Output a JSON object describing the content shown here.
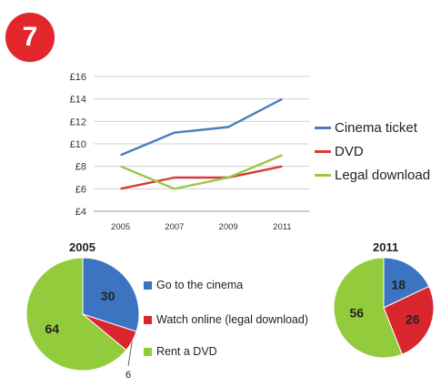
{
  "badge": {
    "label": "7",
    "color": "#e3262c"
  },
  "chart_data": [
    {
      "type": "line",
      "x": [
        "2005",
        "2007",
        "2009",
        "2011"
      ],
      "y_ticks": [
        "£4",
        "£6",
        "£8",
        "£10",
        "£12",
        "£14",
        "£16"
      ],
      "ylim": [
        4,
        16
      ],
      "grid": true,
      "legend_position": "right",
      "series": [
        {
          "name": "Cinema ticket",
          "values": [
            9,
            11,
            11.5,
            14
          ],
          "color": "#4a7ebb"
        },
        {
          "name": "DVD",
          "values": [
            6,
            7,
            7,
            8
          ],
          "color": "#d63a3a"
        },
        {
          "name": "Legal download",
          "values": [
            8,
            6,
            7,
            9
          ],
          "color": "#9bc846"
        }
      ]
    },
    {
      "type": "pie",
      "title": "2005",
      "categories": [
        "Go to the cinema",
        "Watch online (legal download)",
        "Rent a DVD"
      ],
      "values": [
        30,
        6,
        64
      ],
      "colors": [
        "#3c74c2",
        "#d9262c",
        "#92cc3c"
      ],
      "labels": [
        "30",
        "6",
        "64"
      ]
    },
    {
      "type": "pie",
      "title": "2011",
      "categories": [
        "Go to the cinema",
        "Watch online (legal download)",
        "Rent a DVD"
      ],
      "values": [
        18,
        26,
        56
      ],
      "colors": [
        "#3c74c2",
        "#d9262c",
        "#92cc3c"
      ],
      "labels": [
        "18",
        "26",
        "56"
      ]
    }
  ]
}
